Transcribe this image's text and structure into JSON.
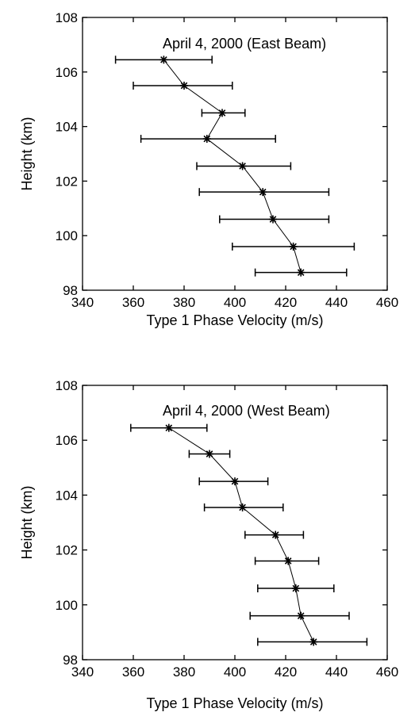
{
  "chart_data": [
    {
      "type": "scatter",
      "annotation": "April 4, 2000 (East Beam)",
      "xlabel": "Type 1 Phase Velocity (m/s)",
      "ylabel": "Height (km)",
      "xlim": [
        340,
        460
      ],
      "ylim": [
        98,
        108
      ],
      "xticks": [
        340,
        360,
        380,
        400,
        420,
        440,
        460
      ],
      "yticks": [
        98,
        100,
        102,
        104,
        106,
        108
      ],
      "grid": false,
      "marker": "asterisk",
      "connected": true,
      "x_error_bars": true,
      "points": [
        {
          "height": 106.45,
          "velocity": 372,
          "err_low": 353,
          "err_high": 391
        },
        {
          "height": 105.5,
          "velocity": 380,
          "err_low": 360,
          "err_high": 399
        },
        {
          "height": 104.5,
          "velocity": 395,
          "err_low": 387,
          "err_high": 404
        },
        {
          "height": 103.55,
          "velocity": 389,
          "err_low": 363,
          "err_high": 416
        },
        {
          "height": 102.55,
          "velocity": 403,
          "err_low": 385,
          "err_high": 422
        },
        {
          "height": 101.6,
          "velocity": 411,
          "err_low": 386,
          "err_high": 437
        },
        {
          "height": 100.6,
          "velocity": 415,
          "err_low": 394,
          "err_high": 437
        },
        {
          "height": 99.6,
          "velocity": 423,
          "err_low": 399,
          "err_high": 447
        },
        {
          "height": 98.65,
          "velocity": 426,
          "err_low": 408,
          "err_high": 444
        }
      ]
    },
    {
      "type": "scatter",
      "annotation": "April 4, 2000 (West Beam)",
      "xlabel": "Type 1 Phase Velocity (m/s)",
      "ylabel": "Height (km)",
      "xlim": [
        340,
        460
      ],
      "ylim": [
        98,
        108
      ],
      "xticks": [
        340,
        360,
        380,
        400,
        420,
        440,
        460
      ],
      "yticks": [
        98,
        100,
        102,
        104,
        106,
        108
      ],
      "grid": false,
      "marker": "asterisk",
      "connected": true,
      "x_error_bars": true,
      "points": [
        {
          "height": 106.45,
          "velocity": 374,
          "err_low": 359,
          "err_high": 389
        },
        {
          "height": 105.5,
          "velocity": 390,
          "err_low": 382,
          "err_high": 398
        },
        {
          "height": 104.5,
          "velocity": 400,
          "err_low": 386,
          "err_high": 413
        },
        {
          "height": 103.55,
          "velocity": 403,
          "err_low": 388,
          "err_high": 419
        },
        {
          "height": 102.55,
          "velocity": 416,
          "err_low": 404,
          "err_high": 427
        },
        {
          "height": 101.6,
          "velocity": 421,
          "err_low": 408,
          "err_high": 433
        },
        {
          "height": 100.6,
          "velocity": 424,
          "err_low": 409,
          "err_high": 439
        },
        {
          "height": 99.6,
          "velocity": 426,
          "err_low": 406,
          "err_high": 445
        },
        {
          "height": 98.65,
          "velocity": 431,
          "err_low": 409,
          "err_high": 452
        }
      ]
    }
  ]
}
